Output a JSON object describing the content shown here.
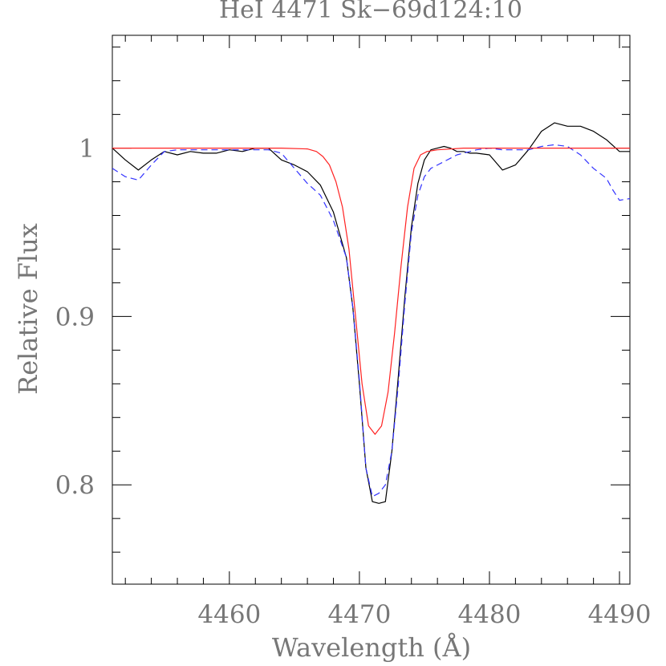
{
  "chart_data": {
    "type": "line",
    "title": "HeI 4471 Sk−69d124:10",
    "xlabel": "Wavelength (Å)",
    "ylabel": "Relative Flux",
    "xlim": [
      4451,
      4490.8
    ],
    "ylim": [
      0.741,
      1.067
    ],
    "x_ticks": [
      {
        "value": 4460,
        "label": "4460"
      },
      {
        "value": 4470,
        "label": "4470"
      },
      {
        "value": 4480,
        "label": "4480"
      },
      {
        "value": 4490,
        "label": "4490"
      }
    ],
    "y_ticks": [
      {
        "value": 0.8,
        "label": "0.8"
      },
      {
        "value": 0.9,
        "label": "0.9"
      },
      {
        "value": 1.0,
        "label": "1"
      }
    ],
    "grid": false,
    "legend": "none",
    "series": [
      {
        "color": "#000000",
        "style": "solid",
        "x": [
          4451,
          4452,
          4453,
          4454,
          4455,
          4456,
          4457,
          4458,
          4459,
          4460,
          4461,
          4462,
          4463,
          4464,
          4465,
          4466,
          4467,
          4468,
          4469,
          4469.5,
          4470,
          4470.5,
          4471,
          4471.5,
          4472,
          4472.5,
          4473,
          4473.5,
          4474,
          4474.5,
          4475,
          4475.5,
          4476,
          4476.5,
          4477,
          4477.5,
          4478,
          4478.5,
          4479,
          4480,
          4481,
          4482,
          4483,
          4484,
          4485,
          4486,
          4487,
          4488,
          4489,
          4490,
          4490.8
        ],
        "y": [
          1.0,
          0.993,
          0.987,
          0.993,
          0.998,
          0.996,
          0.998,
          0.997,
          0.997,
          0.999,
          0.998,
          1.0,
          1.0,
          0.993,
          0.99,
          0.986,
          0.978,
          0.962,
          0.935,
          0.905,
          0.86,
          0.81,
          0.79,
          0.789,
          0.79,
          0.82,
          0.865,
          0.912,
          0.953,
          0.979,
          0.993,
          0.999,
          1.0,
          1.001,
          1.0,
          0.998,
          0.998,
          0.997,
          0.997,
          0.996,
          0.987,
          0.99,
          0.999,
          1.01,
          1.015,
          1.013,
          1.013,
          1.01,
          1.005,
          0.998,
          0.998
        ],
        "x_cap": 4490.8
      },
      {
        "color": "#3333ff",
        "style": "dashed",
        "x": [
          4451,
          4452,
          4453,
          4454,
          4455,
          4456,
          4457,
          4458,
          4459,
          4460,
          4461,
          4462,
          4463,
          4464,
          4465,
          4466,
          4467,
          4468,
          4469,
          4469.5,
          4470,
          4470.5,
          4471,
          4471.5,
          4472,
          4472.5,
          4473,
          4473.5,
          4474,
          4474.5,
          4475,
          4475.5,
          4476,
          4476.5,
          4477,
          4477.5,
          4478,
          4479,
          4480,
          4481,
          4482,
          4483,
          4484,
          4485,
          4486,
          4487,
          4488,
          4489,
          4489.5,
          4490,
          4490.8
        ],
        "y": [
          0.988,
          0.983,
          0.981,
          0.99,
          0.998,
          0.999,
          0.999,
          0.999,
          0.999,
          0.999,
          0.999,
          0.999,
          0.999,
          0.997,
          0.988,
          0.979,
          0.972,
          0.957,
          0.935,
          0.905,
          0.862,
          0.81,
          0.793,
          0.795,
          0.8,
          0.82,
          0.86,
          0.908,
          0.95,
          0.972,
          0.983,
          0.988,
          0.99,
          0.992,
          0.994,
          0.996,
          0.997,
          0.999,
          1.0,
          0.999,
          0.999,
          0.999,
          1.001,
          1.002,
          1.001,
          0.996,
          0.988,
          0.982,
          0.975,
          0.969,
          0.97
        ],
        "x_cap": 4490.8
      },
      {
        "color": "#ff2222",
        "style": "solid",
        "x": [
          4451,
          4455,
          4460,
          4464,
          4466,
          4466.7,
          4467.2,
          4467.7,
          4468.2,
          4468.7,
          4469.2,
          4469.7,
          4470.2,
          4470.7,
          4471.2,
          4471.7,
          4472.2,
          4472.7,
          4473.2,
          4473.7,
          4474.2,
          4474.7,
          4475.2,
          4476,
          4478,
          4482,
          4486,
          4490,
          4490.8
        ],
        "y": [
          1.0,
          1.0,
          1.0,
          1.0,
          0.9995,
          0.998,
          0.995,
          0.99,
          0.98,
          0.965,
          0.94,
          0.9,
          0.86,
          0.835,
          0.83,
          0.835,
          0.855,
          0.89,
          0.93,
          0.965,
          0.988,
          0.996,
          0.998,
          0.999,
          1.0,
          1.0,
          1.0,
          1.0,
          1.0
        ],
        "x_cap": 4490.8
      }
    ]
  }
}
